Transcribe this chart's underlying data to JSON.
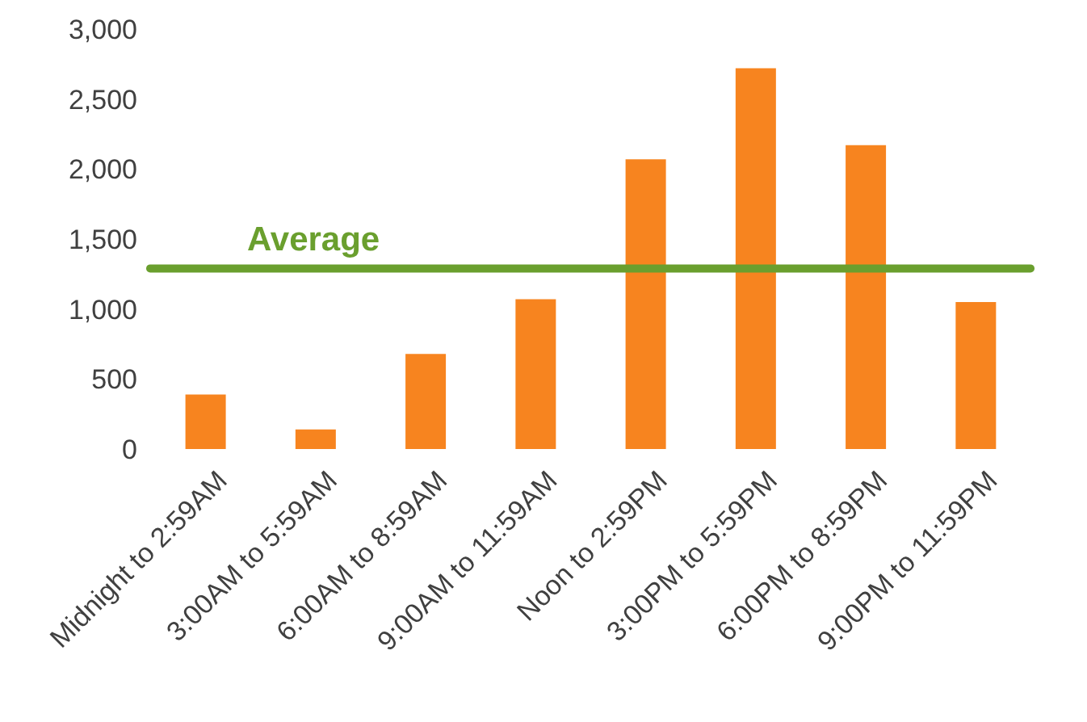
{
  "chart_data": {
    "type": "bar",
    "categories": [
      "Midnight to 2:59AM",
      "3:00AM to 5:59AM",
      "6:00AM to 8:59AM",
      "9:00AM to 11:59AM",
      "Noon to 2:59PM",
      "3:00PM to 5:59PM",
      "6:00PM to 8:59PM",
      "9:00PM to 11:59PM"
    ],
    "values": [
      390,
      140,
      680,
      1070,
      2070,
      2720,
      2170,
      1050
    ],
    "color": "#f7841f",
    "ylim": [
      0,
      3000
    ],
    "yticks": [
      0,
      500,
      {
        "value": 1000,
        "label": "1,000"
      },
      {
        "value": 1500,
        "label": "1,500"
      },
      {
        "value": 2000,
        "label": "2,000"
      },
      {
        "value": 2500,
        "label": "2,500"
      },
      {
        "value": 3000,
        "label": "3,000"
      }
    ],
    "grid": false,
    "ref_lines": [
      {
        "axis": "y",
        "value": 1290,
        "label": "Average",
        "color": "#6a9f2e"
      }
    ]
  }
}
